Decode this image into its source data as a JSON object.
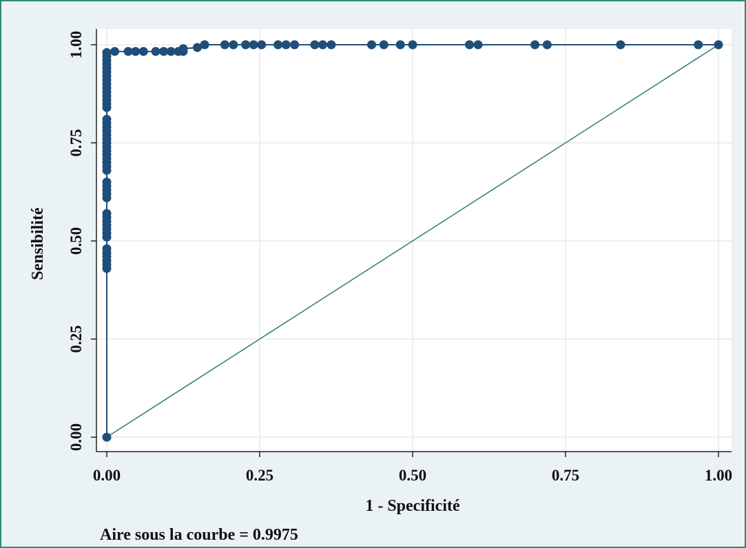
{
  "chart_data": {
    "type": "line",
    "xlabel": "1 - Specificité",
    "ylabel": "Sensibilité",
    "annotation": "Aire sous la courbe = 0.9975",
    "xlim": [
      0,
      1
    ],
    "ylim": [
      0,
      1
    ],
    "x_ticks": [
      "0.00",
      "0.25",
      "0.50",
      "0.75",
      "1.00"
    ],
    "y_ticks": [
      "0.00",
      "0.25",
      "0.50",
      "0.75",
      "1.00"
    ],
    "grid": true,
    "series": [
      {
        "kind": "roc",
        "color": "#1f4e79",
        "points": [
          [
            0,
            0
          ],
          [
            0,
            0.43
          ],
          [
            0,
            0.44
          ],
          [
            0,
            0.45
          ],
          [
            0,
            0.46
          ],
          [
            0,
            0.47
          ],
          [
            0,
            0.48
          ],
          [
            0,
            0.51
          ],
          [
            0,
            0.52
          ],
          [
            0,
            0.53
          ],
          [
            0,
            0.54
          ],
          [
            0,
            0.55
          ],
          [
            0,
            0.56
          ],
          [
            0,
            0.57
          ],
          [
            0,
            0.61
          ],
          [
            0,
            0.62
          ],
          [
            0,
            0.63
          ],
          [
            0,
            0.64
          ],
          [
            0,
            0.65
          ],
          [
            0,
            0.68
          ],
          [
            0,
            0.69
          ],
          [
            0,
            0.7
          ],
          [
            0,
            0.71
          ],
          [
            0,
            0.72
          ],
          [
            0,
            0.73
          ],
          [
            0,
            0.74
          ],
          [
            0,
            0.75
          ],
          [
            0,
            0.76
          ],
          [
            0,
            0.77
          ],
          [
            0,
            0.78
          ],
          [
            0,
            0.79
          ],
          [
            0,
            0.8
          ],
          [
            0,
            0.81
          ],
          [
            0,
            0.84
          ],
          [
            0,
            0.85
          ],
          [
            0,
            0.86
          ],
          [
            0,
            0.87
          ],
          [
            0,
            0.88
          ],
          [
            0,
            0.89
          ],
          [
            0,
            0.9
          ],
          [
            0,
            0.91
          ],
          [
            0,
            0.92
          ],
          [
            0,
            0.93
          ],
          [
            0,
            0.94
          ],
          [
            0,
            0.95
          ],
          [
            0,
            0.96
          ],
          [
            0,
            0.97
          ],
          [
            0,
            0.98
          ],
          [
            0.013,
            0.983
          ],
          [
            0.035,
            0.983
          ],
          [
            0.047,
            0.983
          ],
          [
            0.06,
            0.983
          ],
          [
            0.08,
            0.983
          ],
          [
            0.093,
            0.983
          ],
          [
            0.105,
            0.983
          ],
          [
            0.117,
            0.983
          ],
          [
            0.125,
            0.983
          ],
          [
            0.125,
            0.99
          ],
          [
            0.148,
            0.993
          ],
          [
            0.16,
            1.0
          ],
          [
            0.193,
            1.0
          ],
          [
            0.207,
            1.0
          ],
          [
            0.227,
            1.0
          ],
          [
            0.24,
            1.0
          ],
          [
            0.253,
            1.0
          ],
          [
            0.28,
            1.0
          ],
          [
            0.293,
            1.0
          ],
          [
            0.307,
            1.0
          ],
          [
            0.34,
            1.0
          ],
          [
            0.353,
            1.0
          ],
          [
            0.367,
            1.0
          ],
          [
            0.433,
            1.0
          ],
          [
            0.453,
            1.0
          ],
          [
            0.48,
            1.0
          ],
          [
            0.5,
            1.0
          ],
          [
            0.593,
            1.0
          ],
          [
            0.607,
            1.0
          ],
          [
            0.7,
            1.0
          ],
          [
            0.72,
            1.0
          ],
          [
            0.84,
            1.0
          ],
          [
            0.967,
            1.0
          ],
          [
            1.0,
            1.0
          ]
        ]
      },
      {
        "kind": "reference",
        "color": "#2e7d6b",
        "points": [
          [
            0,
            0
          ],
          [
            1,
            1
          ]
        ]
      }
    ]
  }
}
